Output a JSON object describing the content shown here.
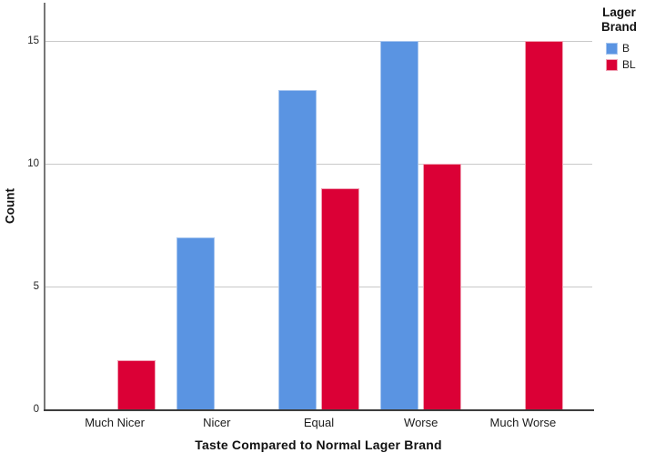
{
  "chart_data": {
    "type": "bar",
    "title": "",
    "xlabel": "Taste Compared to Normal Lager Brand",
    "ylabel": "Count",
    "categories": [
      "Much Nicer",
      "Nicer",
      "Equal",
      "Worse",
      "Much Worse"
    ],
    "series": [
      {
        "name": "B",
        "color": "#5A94E2",
        "border_color": "#A6C5EF",
        "values": [
          0,
          7,
          13,
          15,
          0
        ]
      },
      {
        "name": "BL",
        "color": "#DB0036",
        "border_color": "#F0A0B4",
        "values": [
          2,
          0,
          9,
          10,
          15
        ]
      }
    ],
    "y_ticks": [
      0,
      5,
      10,
      15
    ],
    "ylim": [
      0,
      16.5
    ],
    "grid": "horizontal-light-gray",
    "gridline_color": "#c9c9c9",
    "legend": {
      "title": "Lager Brand",
      "position": "top-right",
      "entries": [
        "B",
        "BL"
      ]
    }
  }
}
